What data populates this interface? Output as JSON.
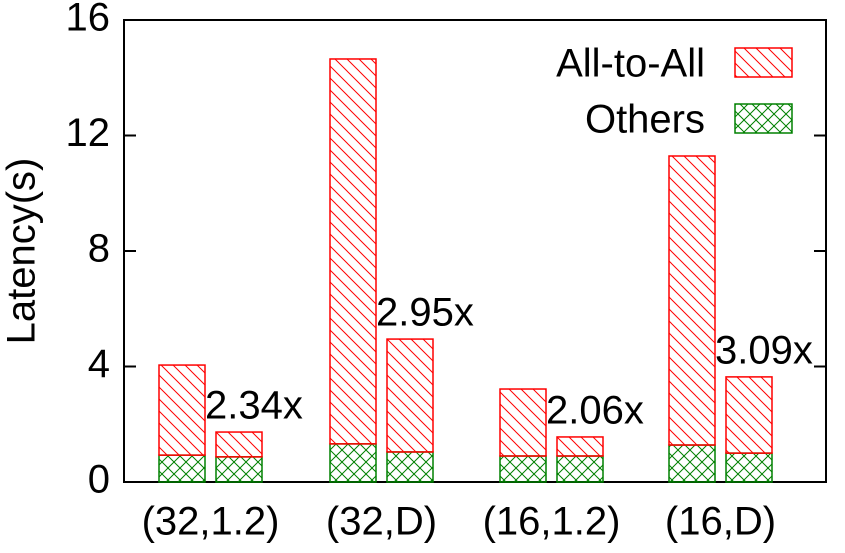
{
  "chart_data": {
    "type": "stacked_bar",
    "y_label": "Latency(s)",
    "categories": [
      "(32,1.2)",
      null,
      "(32,D)",
      null,
      "(16,1.2)",
      null,
      "(16,D)",
      null
    ],
    "series": [
      {
        "name": "Others",
        "color": "#008000",
        "pattern": "crosshatch",
        "values": [
          0.93,
          0.87,
          1.32,
          1.04,
          0.9,
          0.9,
          1.28,
          1.0
        ]
      },
      {
        "name": "All-to-All",
        "color": "#ff0000",
        "pattern": "diagonal",
        "values": [
          3.12,
          0.86,
          13.33,
          3.91,
          2.32,
          0.66,
          10.01,
          2.64
        ]
      }
    ],
    "annotations": [
      "2.34x",
      "2.95x",
      "2.06x",
      "3.09x"
    ],
    "ylim": [
      0,
      16
    ],
    "yticks": [
      0,
      4,
      8,
      12,
      16
    ],
    "legend": "top-right"
  }
}
